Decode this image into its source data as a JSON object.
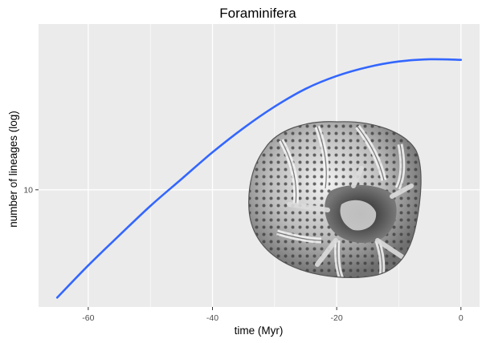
{
  "chart_data": {
    "type": "line",
    "title": "Foraminifera",
    "xlabel": "time (Myr)",
    "ylabel": "number of lineages (log)",
    "x_scale": "linear",
    "y_scale": "log",
    "xlim": [
      -68,
      3
    ],
    "ylim": [
      4.3,
      33
    ],
    "x_ticks": [
      -60,
      -40,
      -20,
      0
    ],
    "x_tick_labels": [
      "-60",
      "-40",
      "-20",
      "0"
    ],
    "y_ticks": [
      10
    ],
    "y_tick_labels": [
      "10"
    ],
    "grid": true,
    "background": "#ebebeb",
    "grid_color": "#ffffff",
    "series": [
      {
        "color": "#3366ff",
        "x": [
          -65,
          -60,
          -55,
          -50,
          -45,
          -40,
          -35,
          -30,
          -25,
          -20,
          -15,
          -10,
          -5,
          0
        ],
        "y": [
          4.6,
          5.8,
          7.2,
          8.9,
          10.8,
          13.1,
          15.6,
          18.2,
          20.7,
          22.7,
          24.2,
          25.2,
          25.6,
          25.5
        ]
      }
    ],
    "image": {
      "name": "foraminifera-shell-image"
    }
  }
}
